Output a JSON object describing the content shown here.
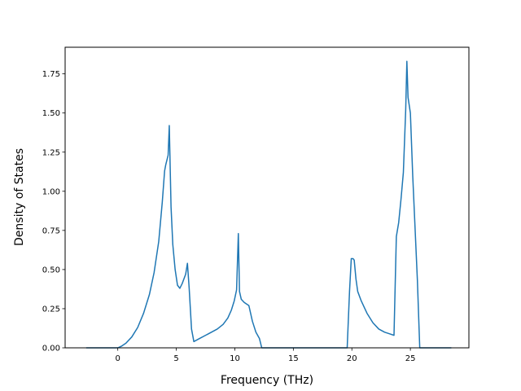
{
  "chart_data": {
    "type": "line",
    "title": "",
    "xlabel": "Frequency (THz)",
    "ylabel": "Density of States",
    "xlim": [
      -4.5,
      30.0
    ],
    "ylim": [
      0,
      1.92
    ],
    "xticks": [
      0,
      5,
      10,
      15,
      20,
      25
    ],
    "yticks": [
      0.0,
      0.25,
      0.5,
      0.75,
      1.0,
      1.25,
      1.5,
      1.75
    ],
    "xtick_labels": [
      "0",
      "5",
      "10",
      "15",
      "20",
      "25"
    ],
    "ytick_labels": [
      "0.00",
      "0.25",
      "0.50",
      "0.75",
      "1.00",
      "1.25",
      "1.50",
      "1.75"
    ],
    "grid": false,
    "line_color": "#1f77b4",
    "series": [
      {
        "x": [
          -2.7,
          -1.5,
          -0.5,
          0.0,
          0.3,
          0.7,
          1.2,
          1.7,
          2.2,
          2.7,
          3.1,
          3.5,
          3.8,
          4.0,
          4.1,
          4.3,
          4.4,
          4.55,
          4.7,
          4.9,
          5.1,
          5.3,
          5.5,
          5.8,
          5.95,
          6.1,
          6.3,
          6.5,
          7.0,
          7.5,
          8.0,
          8.5,
          9.0,
          9.4,
          9.7,
          9.95,
          10.15,
          10.3,
          10.4,
          10.55,
          10.8,
          11.2,
          11.5,
          11.8,
          12.1,
          12.3,
          13.0,
          15.0,
          17.0,
          19.0,
          19.6,
          19.8,
          19.95,
          20.1,
          20.2,
          20.35,
          20.5,
          20.8,
          21.3,
          21.8,
          22.3,
          22.8,
          23.2,
          23.6,
          23.8,
          24.0,
          24.2,
          24.4,
          24.6,
          24.7,
          24.8,
          25.0,
          25.2,
          25.6,
          25.8,
          26.2,
          27.0,
          28.5
        ],
        "y": [
          0.0,
          0.0,
          0.0,
          0.0,
          0.01,
          0.03,
          0.07,
          0.13,
          0.22,
          0.34,
          0.48,
          0.68,
          0.93,
          1.13,
          1.17,
          1.23,
          1.42,
          0.9,
          0.66,
          0.5,
          0.4,
          0.38,
          0.41,
          0.47,
          0.54,
          0.38,
          0.12,
          0.04,
          0.06,
          0.08,
          0.1,
          0.12,
          0.15,
          0.19,
          0.24,
          0.3,
          0.37,
          0.73,
          0.36,
          0.31,
          0.29,
          0.27,
          0.17,
          0.1,
          0.06,
          0.0,
          0.0,
          0.0,
          0.0,
          0.0,
          0.0,
          0.36,
          0.57,
          0.57,
          0.56,
          0.44,
          0.36,
          0.3,
          0.22,
          0.16,
          0.12,
          0.1,
          0.09,
          0.08,
          0.71,
          0.8,
          0.95,
          1.12,
          1.52,
          1.83,
          1.6,
          1.5,
          1.1,
          0.43,
          0.0,
          0.0,
          0.0,
          0.0
        ]
      }
    ]
  }
}
